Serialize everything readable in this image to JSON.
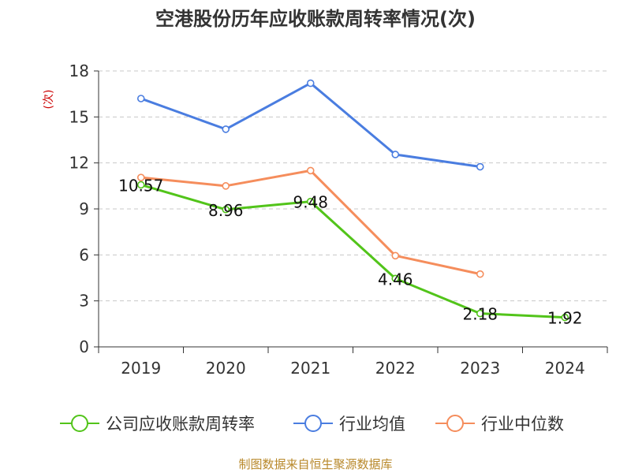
{
  "title": "空港股份历年应收账款周转率情况(次)",
  "source": "制图数据来自恒生聚源数据库",
  "chart_data": {
    "type": "line",
    "title": "空港股份历年应收账款周转率情况(次)",
    "xlabel": "",
    "ylabel": "(次)",
    "categories": [
      "2019",
      "2020",
      "2021",
      "2022",
      "2023",
      "2024"
    ],
    "ylim": [
      0,
      18
    ],
    "yticks": [
      0,
      3,
      6,
      9,
      12,
      15,
      18
    ],
    "grid": true,
    "legend_position": "bottom",
    "series": [
      {
        "name": "公司应收账款周转率",
        "color": "#52c41a",
        "labels": true,
        "values": [
          10.57,
          8.96,
          9.48,
          4.46,
          2.18,
          1.92
        ]
      },
      {
        "name": "行业均值",
        "color": "#4a7de0",
        "labels": false,
        "values": [
          16.2,
          14.2,
          17.2,
          12.55,
          11.75,
          null
        ]
      },
      {
        "name": "行业中位数",
        "color": "#f58d5c",
        "labels": false,
        "values": [
          11.05,
          10.5,
          11.5,
          5.95,
          4.75,
          null
        ]
      }
    ]
  }
}
